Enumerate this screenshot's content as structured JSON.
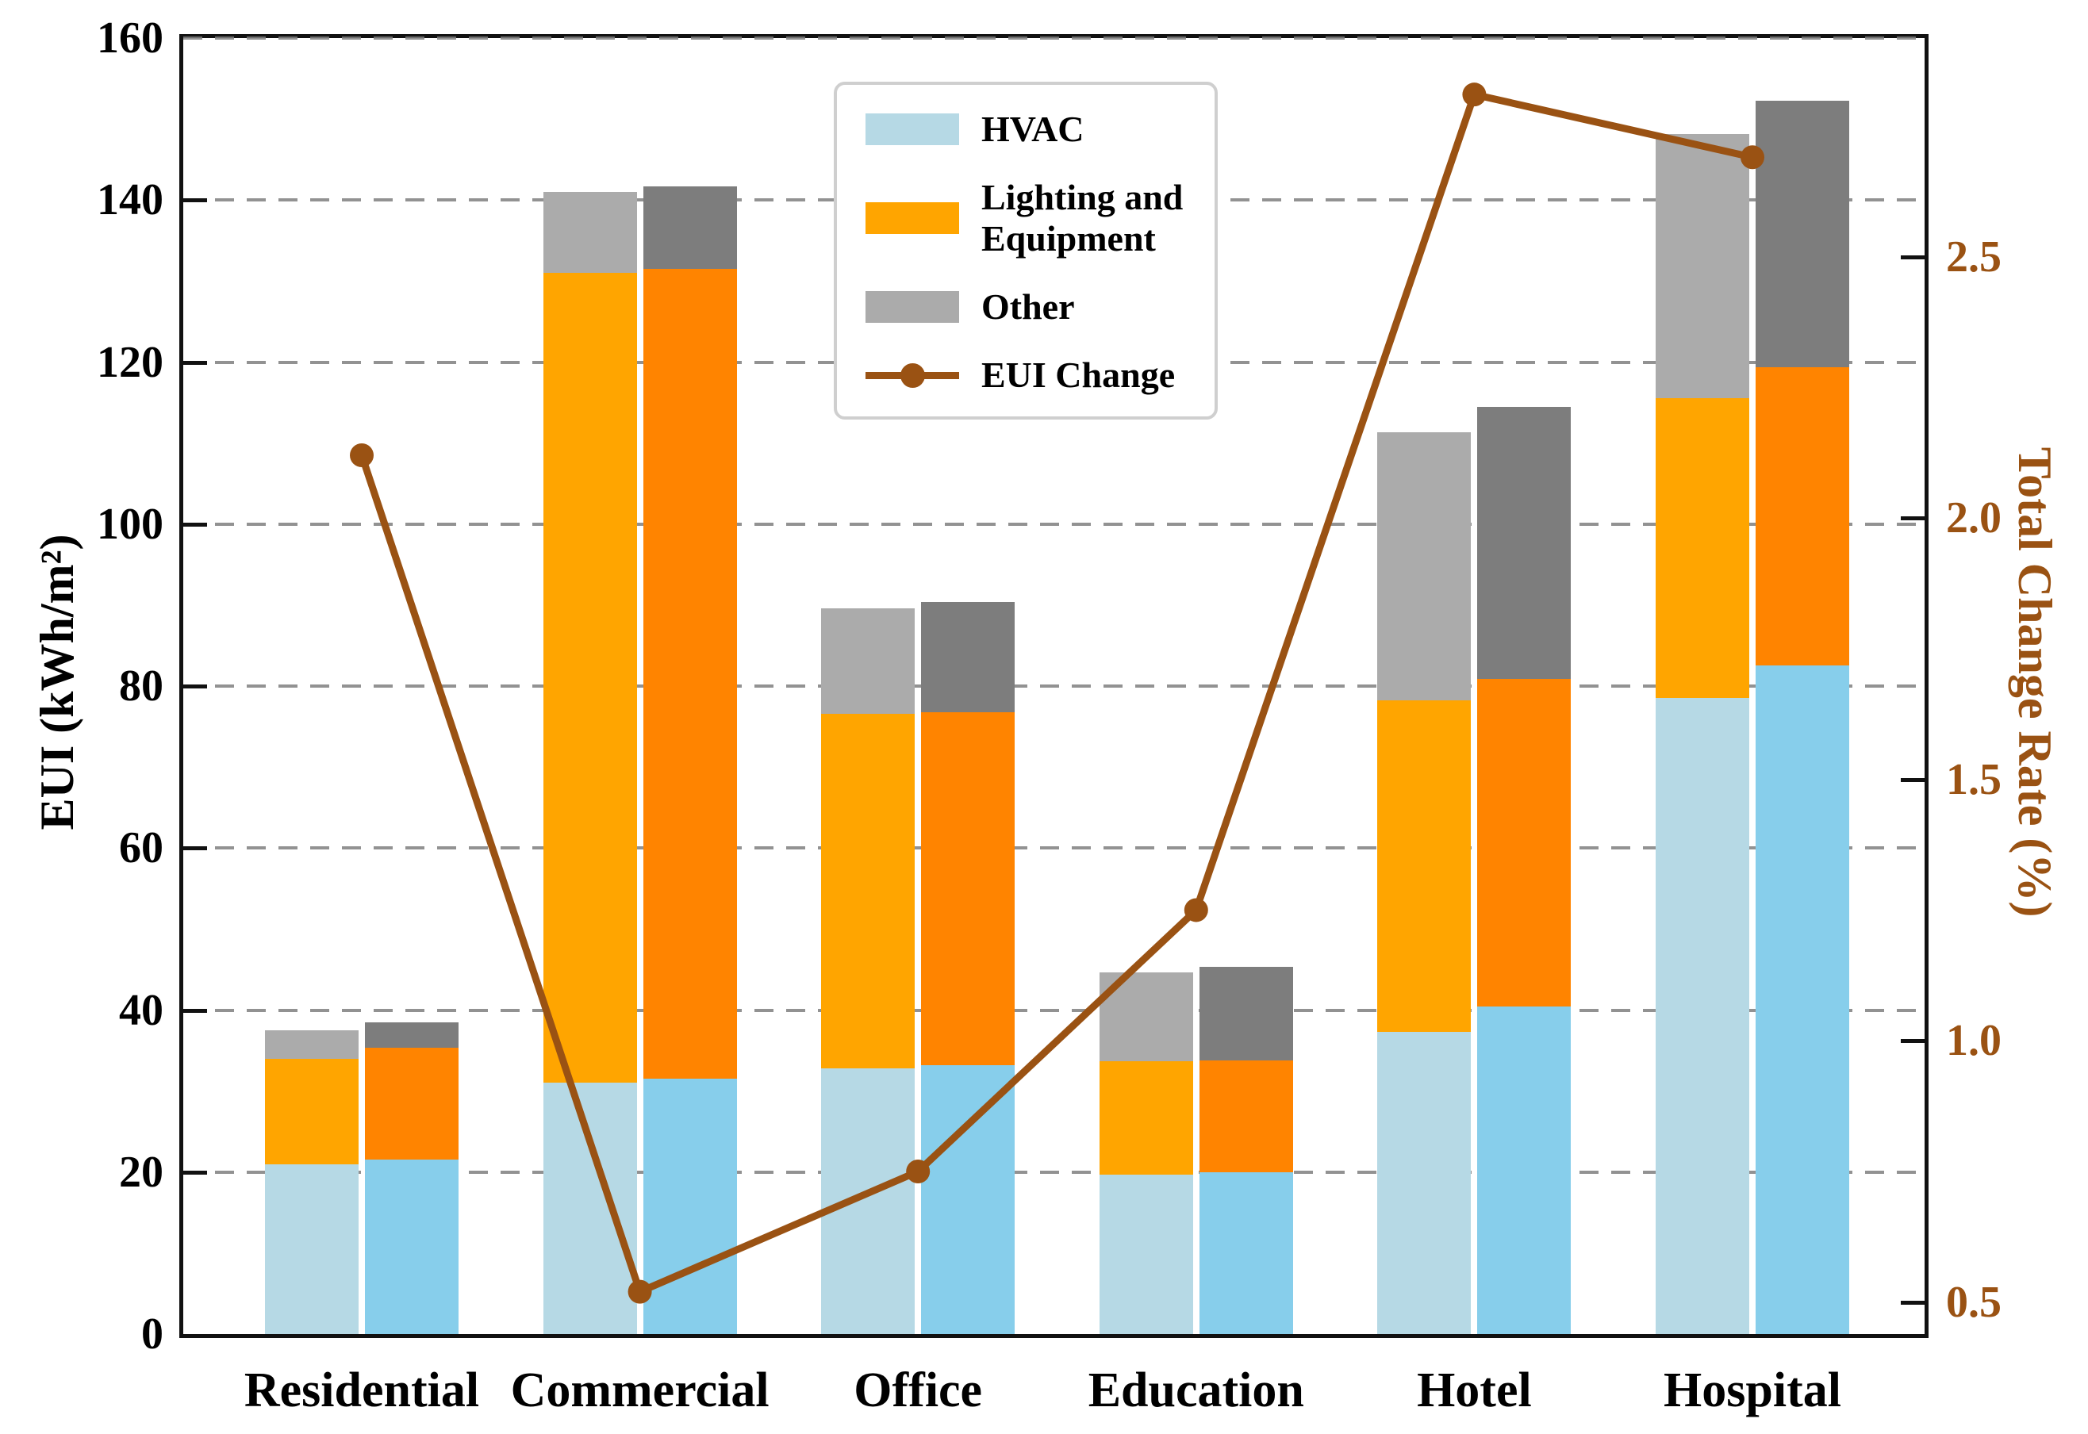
{
  "figure": {
    "background": "#ffffff",
    "frame_color": "#111111"
  },
  "legend": {
    "items": [
      {
        "label": "HVAC",
        "swatch": "hvac"
      },
      {
        "label": "Lighting and Equipment",
        "swatch": "lighting"
      },
      {
        "label": "Other",
        "swatch": "other"
      },
      {
        "label": "EUI Change",
        "swatch": "line"
      }
    ]
  },
  "chart_data": {
    "type": "stacked-bar+line",
    "categories": [
      "Residential",
      "Commercial",
      "Office",
      "Education",
      "Hotel",
      "Hospital"
    ],
    "left_axis": {
      "label": "EUI (kWh/m²)",
      "min": 0,
      "max": 160,
      "ticks": [
        0,
        20,
        40,
        60,
        80,
        100,
        120,
        140,
        160
      ],
      "grid": "dashed"
    },
    "right_axis": {
      "label": "Total Change Rate (%)",
      "min": 0.439,
      "max": 2.918,
      "ticks": [
        "0.5",
        "1.0",
        "1.5",
        "2.0",
        "2.5"
      ],
      "color": "#9A5213"
    },
    "stacks": [
      {
        "id": "left-bar",
        "segments": [
          {
            "name": "HVAC",
            "color": "#B6D9E5",
            "values": [
              21.0,
              31.0,
              32.8,
              19.7,
              37.3,
              78.5
            ]
          },
          {
            "name": "Lighting and Equipment",
            "color": "#FFA500",
            "values": [
              13.0,
              100.0,
              43.8,
              14.0,
              40.9,
              37.0
            ]
          },
          {
            "name": "Other",
            "color": "#ABABAB",
            "values": [
              3.5,
              10.0,
              13.0,
              11.0,
              33.1,
              32.7
            ]
          }
        ],
        "totals": [
          37.5,
          141.0,
          89.6,
          44.7,
          111.3,
          148.2
        ]
      },
      {
        "id": "right-bar",
        "segments": [
          {
            "name": "HVAC",
            "color": "#87CEEB",
            "values": [
              21.5,
              31.5,
              33.2,
              20.0,
              40.4,
              82.5
            ]
          },
          {
            "name": "Lighting and Equipment",
            "color": "#FF8400",
            "values": [
              13.8,
              100.0,
              43.6,
              13.8,
              40.5,
              36.9
            ]
          },
          {
            "name": "Other",
            "color": "#7D7D7D",
            "values": [
              3.2,
              10.2,
              13.6,
              11.5,
              33.6,
              32.9
            ]
          }
        ],
        "totals": [
          38.5,
          141.7,
          90.4,
          45.3,
          114.5,
          152.3
        ]
      }
    ],
    "line": {
      "name": "EUI Change",
      "axis": "right",
      "color": "#9A5213",
      "values": [
        2.12,
        0.52,
        0.75,
        1.25,
        2.81,
        2.69
      ]
    },
    "legend_position": "upper-left-of-center",
    "gridline_color": "#7f7f7f"
  }
}
